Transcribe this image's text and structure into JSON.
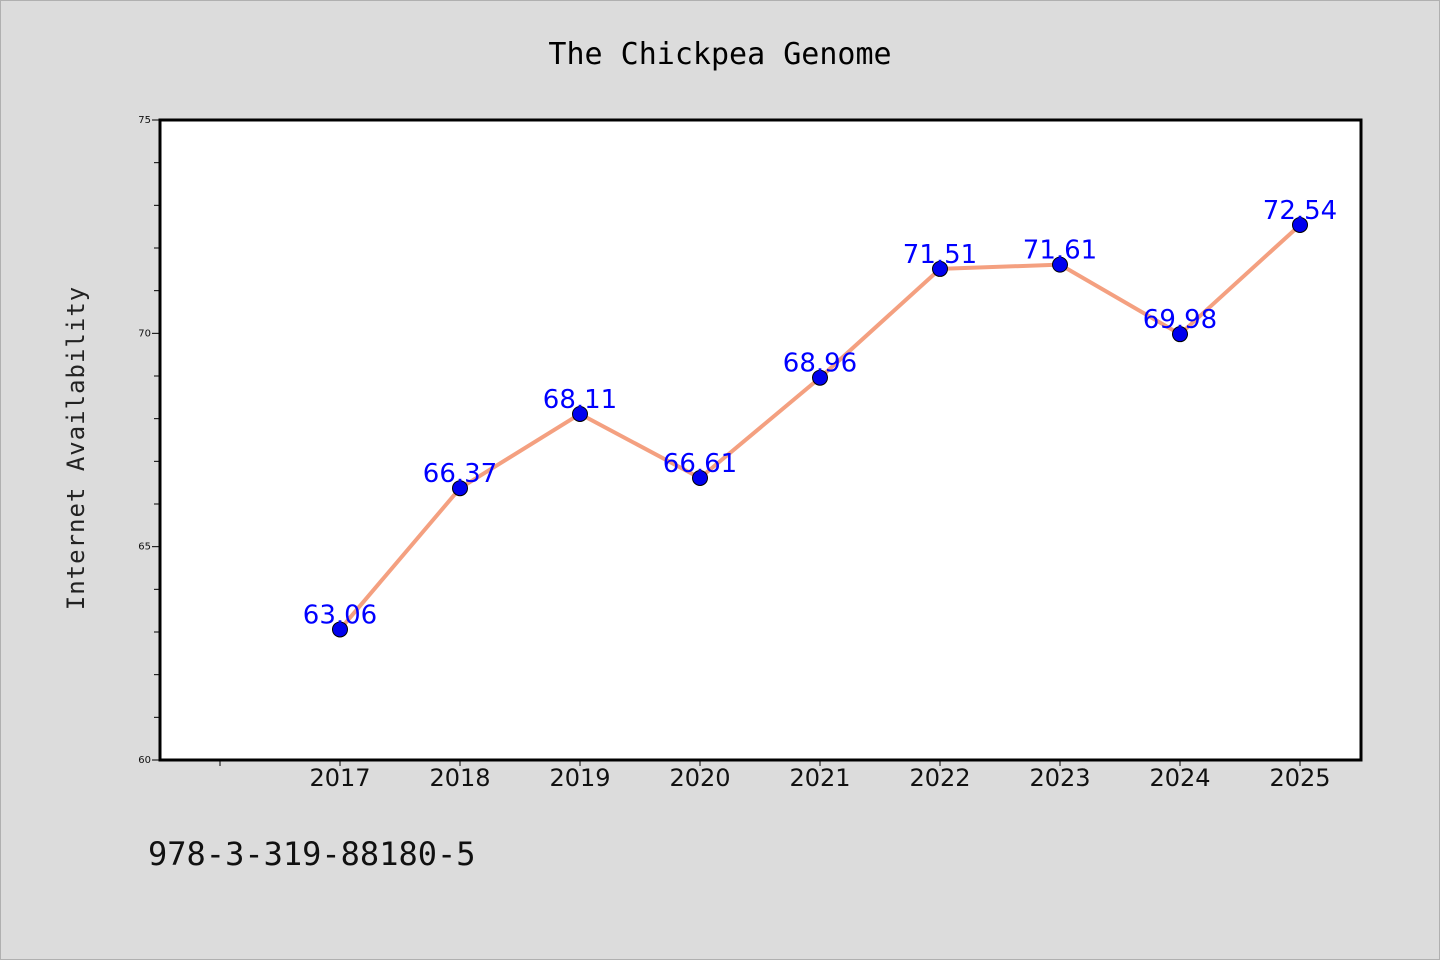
{
  "chart_data": {
    "type": "line",
    "title": "The Chickpea Genome",
    "ylabel": "Internet Availability",
    "xlabel": "",
    "x": [
      "2017",
      "2018",
      "2019",
      "2020",
      "2021",
      "2022",
      "2023",
      "2024",
      "2025"
    ],
    "series": [
      {
        "values": [
          63.06,
          66.37,
          68.11,
          66.61,
          68.96,
          71.51,
          71.61,
          69.98,
          72.54
        ],
        "data_labels": [
          "63.06",
          "66.37",
          "68.11",
          "66.61",
          "68.96",
          "71.51",
          "71.61",
          "69.98",
          "72.54"
        ],
        "line_color": "#f4a080",
        "marker_color": "#0000ee"
      }
    ],
    "ylim": [
      60,
      75
    ],
    "yticks": [
      "60",
      "65",
      "70",
      "75"
    ],
    "grid": false,
    "legend": "none"
  },
  "footer": {
    "isbn": "978-3-319-88180-5"
  }
}
